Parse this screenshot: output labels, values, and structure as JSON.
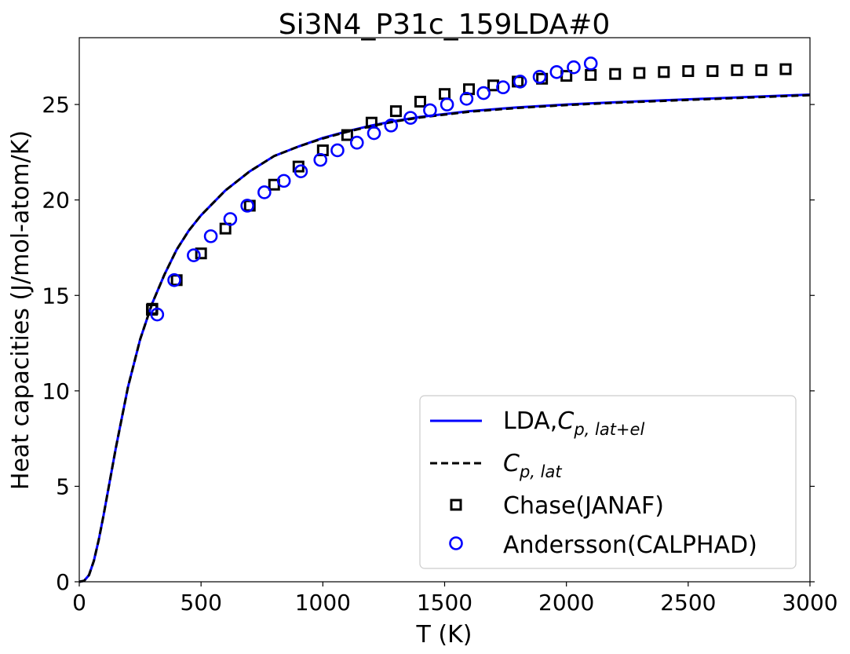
{
  "chart_data": {
    "type": "line",
    "title": "Si3N4_P31c_159LDA#0",
    "xlabel": "T (K)",
    "ylabel": "Heat capacities (J/mol-atom/K)",
    "xlim": [
      0,
      3000
    ],
    "ylim": [
      0,
      28.5
    ],
    "xticks": [
      0,
      500,
      1000,
      1500,
      2000,
      2500,
      3000
    ],
    "xtick_labels": [
      "0",
      "500",
      "1000",
      "1500",
      "2000",
      "2500",
      "3000"
    ],
    "yticks": [
      0,
      5,
      10,
      15,
      20,
      25
    ],
    "ytick_labels": [
      "0",
      "5",
      "10",
      "15",
      "20",
      "25"
    ],
    "grid": false,
    "legend_position": "lower-right",
    "series": [
      {
        "name": "LDA,",
        "name_math": "C",
        "name_sub": "p, lat+el",
        "kind": "line",
        "style": "solid",
        "color": "#0000ff",
        "x": [
          0,
          20,
          40,
          60,
          80,
          100,
          150,
          200,
          250,
          300,
          350,
          400,
          450,
          500,
          600,
          700,
          800,
          900,
          1000,
          1100,
          1200,
          1300,
          1400,
          1500,
          1600,
          1800,
          2000,
          2200,
          2400,
          2600,
          2800,
          3000
        ],
        "y": [
          0,
          0.05,
          0.35,
          1.1,
          2.2,
          3.5,
          7.0,
          10.2,
          12.7,
          14.6,
          16.1,
          17.4,
          18.4,
          19.2,
          20.5,
          21.5,
          22.3,
          22.8,
          23.25,
          23.6,
          23.9,
          24.15,
          24.35,
          24.5,
          24.65,
          24.85,
          25.0,
          25.12,
          25.22,
          25.32,
          25.42,
          25.52
        ]
      },
      {
        "name": "",
        "name_math": "C",
        "name_sub": "p, lat",
        "kind": "line",
        "style": "dashed",
        "color": "#000000",
        "x": [
          0,
          20,
          40,
          60,
          80,
          100,
          150,
          200,
          250,
          300,
          350,
          400,
          450,
          500,
          600,
          700,
          800,
          900,
          1000,
          1100,
          1200,
          1300,
          1400,
          1500,
          1600,
          1800,
          2000,
          2200,
          2400,
          2600,
          2800,
          3000
        ],
        "y": [
          0,
          0.05,
          0.35,
          1.1,
          2.2,
          3.5,
          7.0,
          10.2,
          12.7,
          14.6,
          16.1,
          17.4,
          18.4,
          19.2,
          20.5,
          21.5,
          22.3,
          22.8,
          23.22,
          23.57,
          23.87,
          24.12,
          24.32,
          24.47,
          24.62,
          24.82,
          24.97,
          25.09,
          25.19,
          25.29,
          25.39,
          25.49
        ]
      },
      {
        "name": "Chase(JANAF)",
        "kind": "scatter",
        "marker": "square",
        "color": "#000000",
        "x": [
          298,
          300,
          400,
          500,
          600,
          700,
          800,
          900,
          1000,
          1100,
          1200,
          1300,
          1400,
          1500,
          1600,
          1700,
          1800,
          1900,
          2000,
          2100,
          2200,
          2300,
          2400,
          2500,
          2600,
          2700,
          2800,
          2900
        ],
        "y": [
          14.25,
          14.3,
          15.8,
          17.2,
          18.5,
          19.7,
          20.8,
          21.75,
          22.6,
          23.4,
          24.05,
          24.65,
          25.15,
          25.55,
          25.8,
          26.0,
          26.2,
          26.35,
          26.5,
          26.55,
          26.6,
          26.65,
          26.7,
          26.75,
          26.75,
          26.8,
          26.8,
          26.85
        ]
      },
      {
        "name": "Andersson(CALPHAD)",
        "kind": "scatter",
        "marker": "circle",
        "color": "#0000ff",
        "x": [
          320,
          390,
          470,
          540,
          620,
          690,
          760,
          840,
          910,
          990,
          1060,
          1140,
          1210,
          1280,
          1360,
          1440,
          1510,
          1590,
          1660,
          1740,
          1810,
          1890,
          1960,
          2030,
          2100
        ],
        "y": [
          14.0,
          15.8,
          17.1,
          18.1,
          19.0,
          19.7,
          20.4,
          21.0,
          21.5,
          22.1,
          22.6,
          23.0,
          23.5,
          23.9,
          24.3,
          24.7,
          25.0,
          25.3,
          25.6,
          25.9,
          26.2,
          26.45,
          26.7,
          26.95,
          27.15
        ]
      }
    ]
  }
}
